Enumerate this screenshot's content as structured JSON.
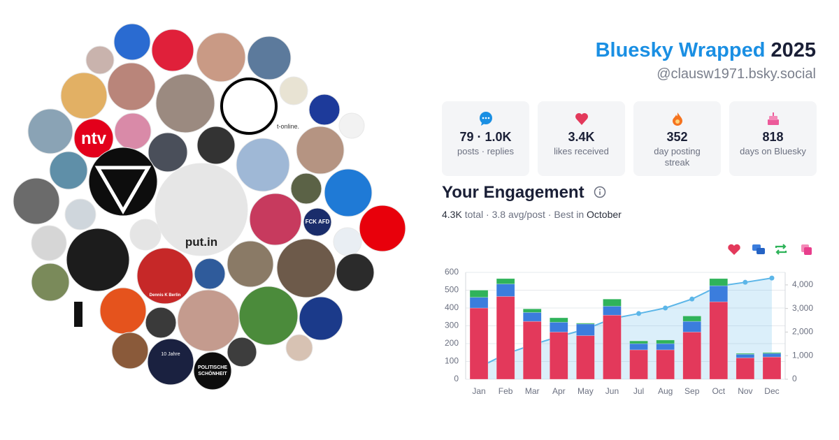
{
  "header": {
    "title": "Bluesky Wrapped",
    "year": "2025",
    "handle": "@clausw1971.bsky.social"
  },
  "stats": [
    {
      "value": "79 · 1.0K",
      "label": "posts · replies"
    },
    {
      "value": "3.4K",
      "label": "likes received"
    },
    {
      "value": "352",
      "label": "day posting streak"
    },
    {
      "value": "818",
      "label": "days on Bluesky"
    }
  ],
  "engagement": {
    "title": "Your Engagement",
    "total": "4.3K",
    "details": "total · 3.8 avg/post · Best in",
    "best": "October"
  },
  "avatar_labels": [
    "ntv",
    "put.in",
    "t-online.",
    "FCK AFD",
    "Dennis K Berlin",
    "10 Jahre",
    "POLITISCHE",
    "SCHÖNHEIT"
  ],
  "chart_data": {
    "type": "bar",
    "stacked": true,
    "grid": true,
    "categories": [
      "Jan",
      "Feb",
      "Mar",
      "Apr",
      "May",
      "Jun",
      "Jul",
      "Aug",
      "Sep",
      "Oct",
      "Nov",
      "Dec"
    ],
    "series": [
      {
        "color": "#e3395b",
        "values": [
          400,
          465,
          325,
          265,
          245,
          360,
          165,
          165,
          265,
          435,
          120,
          125
        ]
      },
      {
        "color": "#3b7ddd",
        "values": [
          60,
          70,
          50,
          55,
          65,
          50,
          35,
          35,
          60,
          90,
          20,
          20
        ]
      },
      {
        "color": "#2fb35a",
        "values": [
          40,
          30,
          20,
          25,
          5,
          40,
          15,
          20,
          30,
          40,
          5,
          5
        ]
      },
      {
        "type": "line",
        "axis": "y2",
        "color": "#5cb6e8",
        "values": [
          500,
          1070,
          1460,
          1810,
          2120,
          2570,
          2785,
          3020,
          3400,
          3950,
          4110,
          4290
        ]
      }
    ],
    "ylim": [
      0,
      600
    ],
    "yticks": [
      0,
      100,
      200,
      300,
      400,
      500,
      600
    ],
    "y2lim": [
      0,
      4530
    ],
    "y2ticks": [
      0,
      {
        "value": 1000,
        "label": "1,000"
      },
      {
        "value": 2000,
        "label": "2,000"
      },
      {
        "value": 3000,
        "label": "3,000"
      },
      {
        "value": 4000,
        "label": "4,000"
      }
    ]
  }
}
